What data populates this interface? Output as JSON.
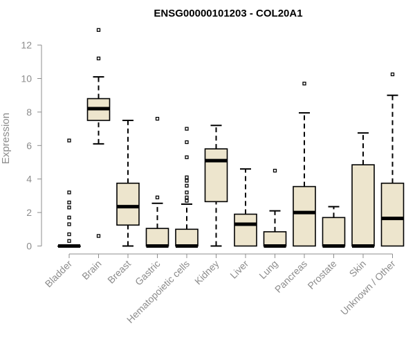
{
  "chart_data": {
    "type": "box",
    "title": "ENSG00000101203 - COL20A1",
    "xlabel": "",
    "ylabel": "Expression",
    "ylim": [
      0,
      12.5
    ],
    "yticks": [
      0,
      2,
      4,
      6,
      8,
      10,
      12
    ],
    "grid": false,
    "box_fill": "#ede5cd",
    "median_color": "#000000",
    "categories": [
      "Bladder",
      "Brain",
      "Breast",
      "Gastric",
      "Hematopoietic cells",
      "Kidney",
      "Liver",
      "Lung",
      "Pancreas",
      "Prostate",
      "Skin",
      "Unknown / Other"
    ],
    "boxes": [
      {
        "category": "Bladder",
        "whisker_low": 0,
        "q1": 0,
        "median": 0,
        "q3": 0,
        "whisker_high": 0,
        "outliers": [
          0.3,
          0.7,
          1.3,
          1.7,
          2.3,
          2.6,
          3.2,
          6.3
        ]
      },
      {
        "category": "Brain",
        "whisker_low": 6.1,
        "q1": 7.5,
        "median": 8.2,
        "q3": 8.8,
        "whisker_high": 10.1,
        "outliers": [
          0.6,
          11.2,
          12.9
        ]
      },
      {
        "category": "Breast",
        "whisker_low": 0,
        "q1": 1.25,
        "median": 2.35,
        "q3": 3.75,
        "whisker_high": 7.5,
        "outliers": []
      },
      {
        "category": "Gastric",
        "whisker_low": 0,
        "q1": 0,
        "median": 0,
        "q3": 1.05,
        "whisker_high": 2.55,
        "outliers": [
          2.9,
          7.6
        ]
      },
      {
        "category": "Hematopoietic cells",
        "whisker_low": 0,
        "q1": 0,
        "median": 0,
        "q3": 1.0,
        "whisker_high": 2.5,
        "outliers": [
          2.7,
          2.9,
          3.2,
          3.6,
          3.9,
          4.1,
          5.3,
          6.2,
          7.0
        ]
      },
      {
        "category": "Kidney",
        "whisker_low": 0,
        "q1": 2.65,
        "median": 5.1,
        "q3": 5.8,
        "whisker_high": 7.2,
        "outliers": []
      },
      {
        "category": "Liver",
        "whisker_low": 0,
        "q1": 0,
        "median": 1.3,
        "q3": 1.9,
        "whisker_high": 4.6,
        "outliers": []
      },
      {
        "category": "Lung",
        "whisker_low": 0,
        "q1": 0,
        "median": 0,
        "q3": 0.85,
        "whisker_high": 2.1,
        "outliers": [
          4.5
        ]
      },
      {
        "category": "Pancreas",
        "whisker_low": 0,
        "q1": 0,
        "median": 2.0,
        "q3": 3.55,
        "whisker_high": 7.95,
        "outliers": [
          9.7
        ]
      },
      {
        "category": "Prostate",
        "whisker_low": 0,
        "q1": 0,
        "median": 0,
        "q3": 1.7,
        "whisker_high": 2.35,
        "outliers": []
      },
      {
        "category": "Skin",
        "whisker_low": 0,
        "q1": 0,
        "median": 0,
        "q3": 4.85,
        "whisker_high": 6.75,
        "outliers": []
      },
      {
        "category": "Unknown / Other",
        "whisker_low": 0,
        "q1": 0,
        "median": 1.65,
        "q3": 3.75,
        "whisker_high": 9.0,
        "outliers": [
          10.25
        ]
      }
    ]
  }
}
